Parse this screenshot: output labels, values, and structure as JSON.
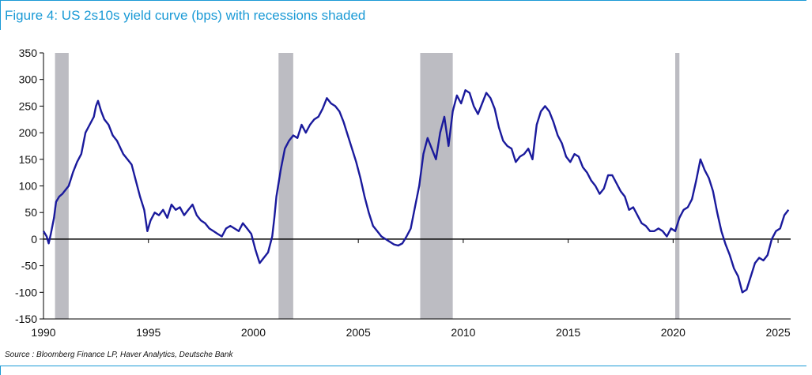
{
  "figure": {
    "title": "Figure 4: US 2s10s yield curve (bps) with recessions shaded",
    "source": "Source : Bloomberg Finance LP, Haver Analytics, Deutsche Bank"
  },
  "colors": {
    "accent": "#1a9ad6",
    "line": "#1a1a9c",
    "recession": "#bcbcc2",
    "axis": "#000000"
  },
  "chart_data": {
    "type": "line",
    "title": "US 2s10s yield curve (bps) with recessions shaded",
    "xlabel": "",
    "ylabel": "",
    "xlim": [
      1990.0,
      2025.6
    ],
    "ylim": [
      -150,
      350
    ],
    "x_ticks": [
      1990,
      1995,
      2000,
      2005,
      2010,
      2015,
      2020,
      2025
    ],
    "y_ticks": [
      350,
      300,
      250,
      200,
      150,
      100,
      50,
      0,
      -50,
      -100,
      -150
    ],
    "grid": false,
    "legend": "none",
    "recessions": [
      [
        1990.55,
        1991.2
      ],
      [
        2001.2,
        2001.9
      ],
      [
        2007.95,
        2009.5
      ],
      [
        2020.1,
        2020.3
      ]
    ],
    "series": [
      {
        "values": [
          [
            1990.0,
            15
          ],
          [
            1990.15,
            5
          ],
          [
            1990.25,
            -8
          ],
          [
            1990.35,
            10
          ],
          [
            1990.5,
            40
          ],
          [
            1990.6,
            70
          ],
          [
            1990.75,
            80
          ],
          [
            1990.9,
            85
          ],
          [
            1991.0,
            90
          ],
          [
            1991.2,
            100
          ],
          [
            1991.4,
            125
          ],
          [
            1991.6,
            145
          ],
          [
            1991.8,
            160
          ],
          [
            1992.0,
            200
          ],
          [
            1992.2,
            215
          ],
          [
            1992.4,
            230
          ],
          [
            1992.5,
            250
          ],
          [
            1992.6,
            260
          ],
          [
            1992.75,
            240
          ],
          [
            1992.9,
            225
          ],
          [
            1993.1,
            215
          ],
          [
            1993.3,
            195
          ],
          [
            1993.5,
            185
          ],
          [
            1993.8,
            160
          ],
          [
            1994.0,
            150
          ],
          [
            1994.2,
            140
          ],
          [
            1994.4,
            110
          ],
          [
            1994.6,
            80
          ],
          [
            1994.8,
            55
          ],
          [
            1994.95,
            15
          ],
          [
            1995.1,
            35
          ],
          [
            1995.3,
            50
          ],
          [
            1995.5,
            45
          ],
          [
            1995.7,
            55
          ],
          [
            1995.9,
            40
          ],
          [
            1996.1,
            65
          ],
          [
            1996.3,
            55
          ],
          [
            1996.5,
            60
          ],
          [
            1996.7,
            45
          ],
          [
            1996.9,
            55
          ],
          [
            1997.1,
            65
          ],
          [
            1997.3,
            45
          ],
          [
            1997.5,
            35
          ],
          [
            1997.7,
            30
          ],
          [
            1997.9,
            20
          ],
          [
            1998.1,
            15
          ],
          [
            1998.3,
            10
          ],
          [
            1998.5,
            5
          ],
          [
            1998.7,
            20
          ],
          [
            1998.9,
            25
          ],
          [
            1999.1,
            20
          ],
          [
            1999.3,
            15
          ],
          [
            1999.5,
            30
          ],
          [
            1999.7,
            20
          ],
          [
            1999.9,
            10
          ],
          [
            2000.1,
            -20
          ],
          [
            2000.3,
            -45
          ],
          [
            2000.5,
            -35
          ],
          [
            2000.7,
            -25
          ],
          [
            2000.9,
            5
          ],
          [
            2001.0,
            40
          ],
          [
            2001.1,
            80
          ],
          [
            2001.3,
            130
          ],
          [
            2001.5,
            170
          ],
          [
            2001.7,
            185
          ],
          [
            2001.9,
            195
          ],
          [
            2002.1,
            190
          ],
          [
            2002.3,
            215
          ],
          [
            2002.5,
            200
          ],
          [
            2002.7,
            215
          ],
          [
            2002.9,
            225
          ],
          [
            2003.1,
            230
          ],
          [
            2003.3,
            245
          ],
          [
            2003.5,
            265
          ],
          [
            2003.7,
            255
          ],
          [
            2003.9,
            250
          ],
          [
            2004.1,
            240
          ],
          [
            2004.3,
            220
          ],
          [
            2004.5,
            195
          ],
          [
            2004.7,
            170
          ],
          [
            2004.9,
            145
          ],
          [
            2005.1,
            115
          ],
          [
            2005.3,
            80
          ],
          [
            2005.5,
            50
          ],
          [
            2005.7,
            25
          ],
          [
            2005.9,
            15
          ],
          [
            2006.1,
            5
          ],
          [
            2006.3,
            0
          ],
          [
            2006.5,
            -5
          ],
          [
            2006.7,
            -10
          ],
          [
            2006.9,
            -12
          ],
          [
            2007.1,
            -8
          ],
          [
            2007.3,
            5
          ],
          [
            2007.5,
            20
          ],
          [
            2007.7,
            60
          ],
          [
            2007.9,
            100
          ],
          [
            2008.1,
            160
          ],
          [
            2008.3,
            190
          ],
          [
            2008.5,
            170
          ],
          [
            2008.7,
            150
          ],
          [
            2008.9,
            200
          ],
          [
            2009.1,
            230
          ],
          [
            2009.3,
            175
          ],
          [
            2009.5,
            240
          ],
          [
            2009.7,
            270
          ],
          [
            2009.9,
            255
          ],
          [
            2010.1,
            280
          ],
          [
            2010.3,
            275
          ],
          [
            2010.5,
            250
          ],
          [
            2010.7,
            235
          ],
          [
            2010.9,
            255
          ],
          [
            2011.1,
            275
          ],
          [
            2011.3,
            265
          ],
          [
            2011.5,
            245
          ],
          [
            2011.7,
            210
          ],
          [
            2011.9,
            185
          ],
          [
            2012.1,
            175
          ],
          [
            2012.3,
            170
          ],
          [
            2012.5,
            145
          ],
          [
            2012.7,
            155
          ],
          [
            2012.9,
            160
          ],
          [
            2013.1,
            170
          ],
          [
            2013.3,
            150
          ],
          [
            2013.5,
            215
          ],
          [
            2013.7,
            240
          ],
          [
            2013.9,
            250
          ],
          [
            2014.1,
            240
          ],
          [
            2014.3,
            220
          ],
          [
            2014.5,
            195
          ],
          [
            2014.7,
            180
          ],
          [
            2014.9,
            155
          ],
          [
            2015.1,
            145
          ],
          [
            2015.3,
            160
          ],
          [
            2015.5,
            155
          ],
          [
            2015.7,
            135
          ],
          [
            2015.9,
            125
          ],
          [
            2016.1,
            110
          ],
          [
            2016.3,
            100
          ],
          [
            2016.5,
            85
          ],
          [
            2016.7,
            95
          ],
          [
            2016.9,
            120
          ],
          [
            2017.1,
            120
          ],
          [
            2017.3,
            105
          ],
          [
            2017.5,
            90
          ],
          [
            2017.7,
            80
          ],
          [
            2017.9,
            55
          ],
          [
            2018.1,
            60
          ],
          [
            2018.3,
            45
          ],
          [
            2018.5,
            30
          ],
          [
            2018.7,
            25
          ],
          [
            2018.9,
            15
          ],
          [
            2019.1,
            15
          ],
          [
            2019.3,
            20
          ],
          [
            2019.5,
            15
          ],
          [
            2019.7,
            5
          ],
          [
            2019.9,
            20
          ],
          [
            2020.1,
            15
          ],
          [
            2020.3,
            40
          ],
          [
            2020.5,
            55
          ],
          [
            2020.7,
            60
          ],
          [
            2020.9,
            75
          ],
          [
            2021.1,
            110
          ],
          [
            2021.3,
            150
          ],
          [
            2021.5,
            130
          ],
          [
            2021.7,
            115
          ],
          [
            2021.9,
            90
          ],
          [
            2022.1,
            50
          ],
          [
            2022.3,
            15
          ],
          [
            2022.5,
            -10
          ],
          [
            2022.7,
            -30
          ],
          [
            2022.9,
            -55
          ],
          [
            2023.1,
            -70
          ],
          [
            2023.3,
            -100
          ],
          [
            2023.5,
            -95
          ],
          [
            2023.7,
            -70
          ],
          [
            2023.9,
            -45
          ],
          [
            2024.1,
            -35
          ],
          [
            2024.3,
            -40
          ],
          [
            2024.5,
            -30
          ],
          [
            2024.7,
            0
          ],
          [
            2024.9,
            15
          ],
          [
            2025.1,
            20
          ],
          [
            2025.3,
            45
          ],
          [
            2025.5,
            55
          ]
        ]
      }
    ]
  }
}
